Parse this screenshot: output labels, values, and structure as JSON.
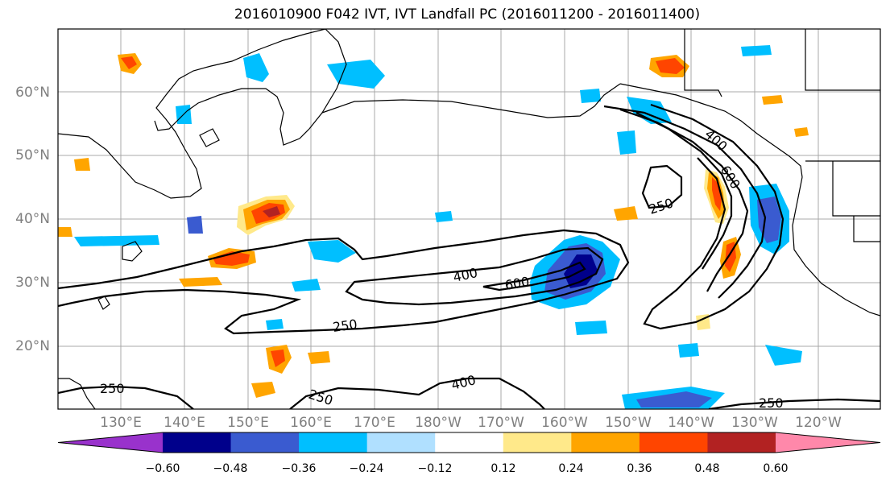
{
  "title": "2016010900 F042 IVT, IVT Landfall PC (2016011200 - 2016011400)",
  "map": {
    "lon_ticks": [
      "130°E",
      "140°E",
      "150°E",
      "160°E",
      "170°E",
      "180°W",
      "170°W",
      "160°W",
      "150°W",
      "140°W",
      "130°W",
      "120°W"
    ],
    "lat_ticks": [
      "60°N",
      "50°N",
      "40°N",
      "30°N",
      "20°N"
    ],
    "contour_levels": [
      250,
      400,
      600
    ],
    "contour_labels": [
      "400",
      "600",
      "250",
      "400",
      "600",
      "250",
      "250",
      "400",
      "250",
      "250"
    ]
  },
  "colorbar": {
    "colors": [
      "#9932cc",
      "#00008b",
      "#3a5bd0",
      "#00bfff",
      "#b0e0ff",
      "#ffffff",
      "#ffe98a",
      "#ffa500",
      "#ff4500",
      "#b22222",
      "#ff88aa"
    ],
    "labels": [
      "−0.60",
      "−0.48",
      "−0.36",
      "−0.24",
      "−0.12",
      "0.12",
      "0.24",
      "0.36",
      "0.48",
      "0.60"
    ]
  }
}
